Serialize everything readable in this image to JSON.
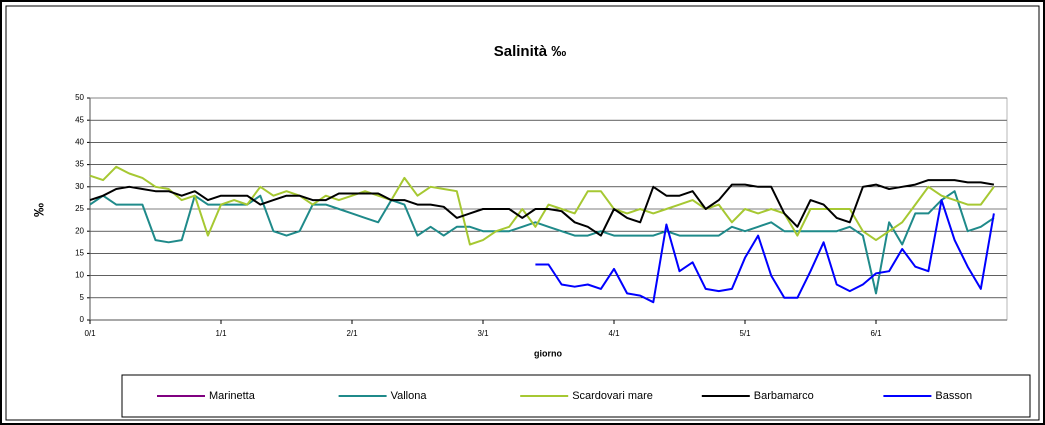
{
  "chart_data": {
    "type": "line",
    "title": "Salinità ‰",
    "x_label": "giorno",
    "y_label": "‰",
    "xlim": [
      0,
      7
    ],
    "xticks": [
      {
        "value": 0,
        "label": "0/1"
      },
      {
        "value": 1,
        "label": "1/1"
      },
      {
        "value": 2,
        "label": "2/1"
      },
      {
        "value": 3,
        "label": "3/1"
      },
      {
        "value": 4,
        "label": "4/1"
      },
      {
        "value": 5,
        "label": "5/1"
      },
      {
        "value": 6,
        "label": "6/1"
      }
    ],
    "ylim": [
      0,
      50
    ],
    "yticks": [
      0,
      5,
      10,
      15,
      20,
      25,
      30,
      35,
      40,
      45,
      50
    ],
    "grid": true,
    "legend": "bottom",
    "x": [
      0,
      0.1,
      0.2,
      0.3,
      0.4,
      0.5,
      0.6,
      0.7,
      0.8,
      0.9,
      1,
      1.1,
      1.2,
      1.3,
      1.4,
      1.5,
      1.6,
      1.7,
      1.8,
      1.9,
      2,
      2.1,
      2.2,
      2.3,
      2.4,
      2.5,
      2.6,
      2.7,
      2.8,
      2.9,
      3,
      3.1,
      3.2,
      3.3,
      3.4,
      3.5,
      3.6,
      3.7,
      3.8,
      3.9,
      4,
      4.1,
      4.2,
      4.3,
      4.4,
      4.5,
      4.6,
      4.7,
      4.8,
      4.9,
      5,
      5.1,
      5.2,
      5.3,
      5.4,
      5.5,
      5.6,
      5.7,
      5.8,
      5.9,
      6,
      6.1,
      6.2,
      6.3,
      6.4,
      6.5,
      6.6,
      6.7,
      6.8,
      6.9
    ],
    "series": [
      {
        "name": "Marinetta",
        "color": "#800080",
        "values": [
          null,
          null,
          null,
          null,
          null,
          null,
          null,
          null,
          null,
          null,
          null,
          null,
          null,
          null,
          null,
          null,
          null,
          null,
          null,
          null,
          null,
          null,
          null,
          null,
          null,
          null,
          null,
          null,
          null,
          null,
          null,
          null,
          null,
          null,
          null,
          null,
          null,
          null,
          null,
          null,
          null,
          null,
          null,
          null,
          null,
          null,
          null,
          null,
          null,
          null,
          null,
          null,
          null,
          null,
          null,
          null,
          null,
          null,
          null,
          null,
          null,
          null,
          null,
          null,
          null,
          null,
          null,
          null,
          null,
          null
        ]
      },
      {
        "name": "Vallona",
        "color": "#1f8a8a",
        "values": [
          26,
          28,
          26,
          26,
          26,
          18,
          17.5,
          18,
          28,
          26,
          26,
          26,
          26,
          28,
          20,
          19,
          20,
          26,
          26,
          25,
          24,
          23,
          22,
          27,
          26,
          19,
          21,
          19,
          21,
          21,
          20,
          20,
          20,
          21,
          22,
          21,
          20,
          19,
          19,
          20,
          19,
          19,
          19,
          19,
          20,
          19,
          19,
          19,
          19,
          21,
          20,
          21,
          22,
          20,
          20,
          20,
          20,
          20,
          21,
          19,
          6,
          22,
          17,
          24,
          24,
          27,
          29,
          20,
          21,
          23
        ]
      },
      {
        "name": "Scardovari mare",
        "color": "#a6c832",
        "values": [
          32.5,
          31.5,
          34.5,
          33,
          32,
          30,
          29.5,
          27,
          28,
          19,
          26,
          27,
          26,
          30,
          28,
          29,
          28,
          26,
          28,
          27,
          28,
          29,
          28,
          27,
          32,
          28,
          30,
          29.5,
          29,
          17,
          18,
          20,
          21,
          25,
          21,
          26,
          25,
          24,
          29,
          29,
          25,
          24,
          25,
          24,
          25,
          26,
          27,
          25,
          26,
          22,
          25,
          24,
          25,
          24,
          19,
          25,
          25,
          25,
          25,
          20,
          18,
          20,
          22,
          26,
          30,
          28,
          27,
          26,
          26,
          30
        ]
      },
      {
        "name": "Barbamarco",
        "color": "#000000",
        "values": [
          27,
          28,
          29.5,
          30,
          29.5,
          29,
          29,
          28,
          29,
          27,
          28,
          28,
          28,
          26,
          27,
          28,
          28,
          27,
          27,
          28.5,
          28.5,
          28.5,
          28.5,
          27,
          27,
          26,
          26,
          25.5,
          23,
          24,
          25,
          25,
          25,
          23,
          25,
          25,
          24.5,
          22,
          21,
          19,
          25,
          23,
          22,
          30,
          28,
          28,
          29,
          25,
          27,
          30.5,
          30.5,
          30,
          30,
          24,
          21,
          27,
          26,
          23,
          22,
          30,
          30.5,
          29.5,
          30,
          30.5,
          31.5,
          31.5,
          31.5,
          31,
          31,
          30.5
        ]
      },
      {
        "name": "Basson",
        "color": "#0000ff",
        "values": [
          null,
          null,
          null,
          null,
          null,
          null,
          null,
          null,
          null,
          null,
          null,
          null,
          null,
          null,
          null,
          null,
          null,
          null,
          null,
          null,
          null,
          null,
          null,
          null,
          null,
          null,
          null,
          null,
          null,
          null,
          null,
          null,
          null,
          null,
          12.5,
          12.5,
          8,
          7.5,
          8,
          7,
          11.5,
          6,
          5.5,
          4,
          21.5,
          11,
          13,
          7,
          6.5,
          7,
          14,
          19,
          10,
          5,
          5,
          11,
          17.5,
          8,
          6.5,
          8,
          10.5,
          11,
          16,
          12,
          11,
          27,
          18,
          12,
          7,
          24
        ]
      }
    ]
  }
}
